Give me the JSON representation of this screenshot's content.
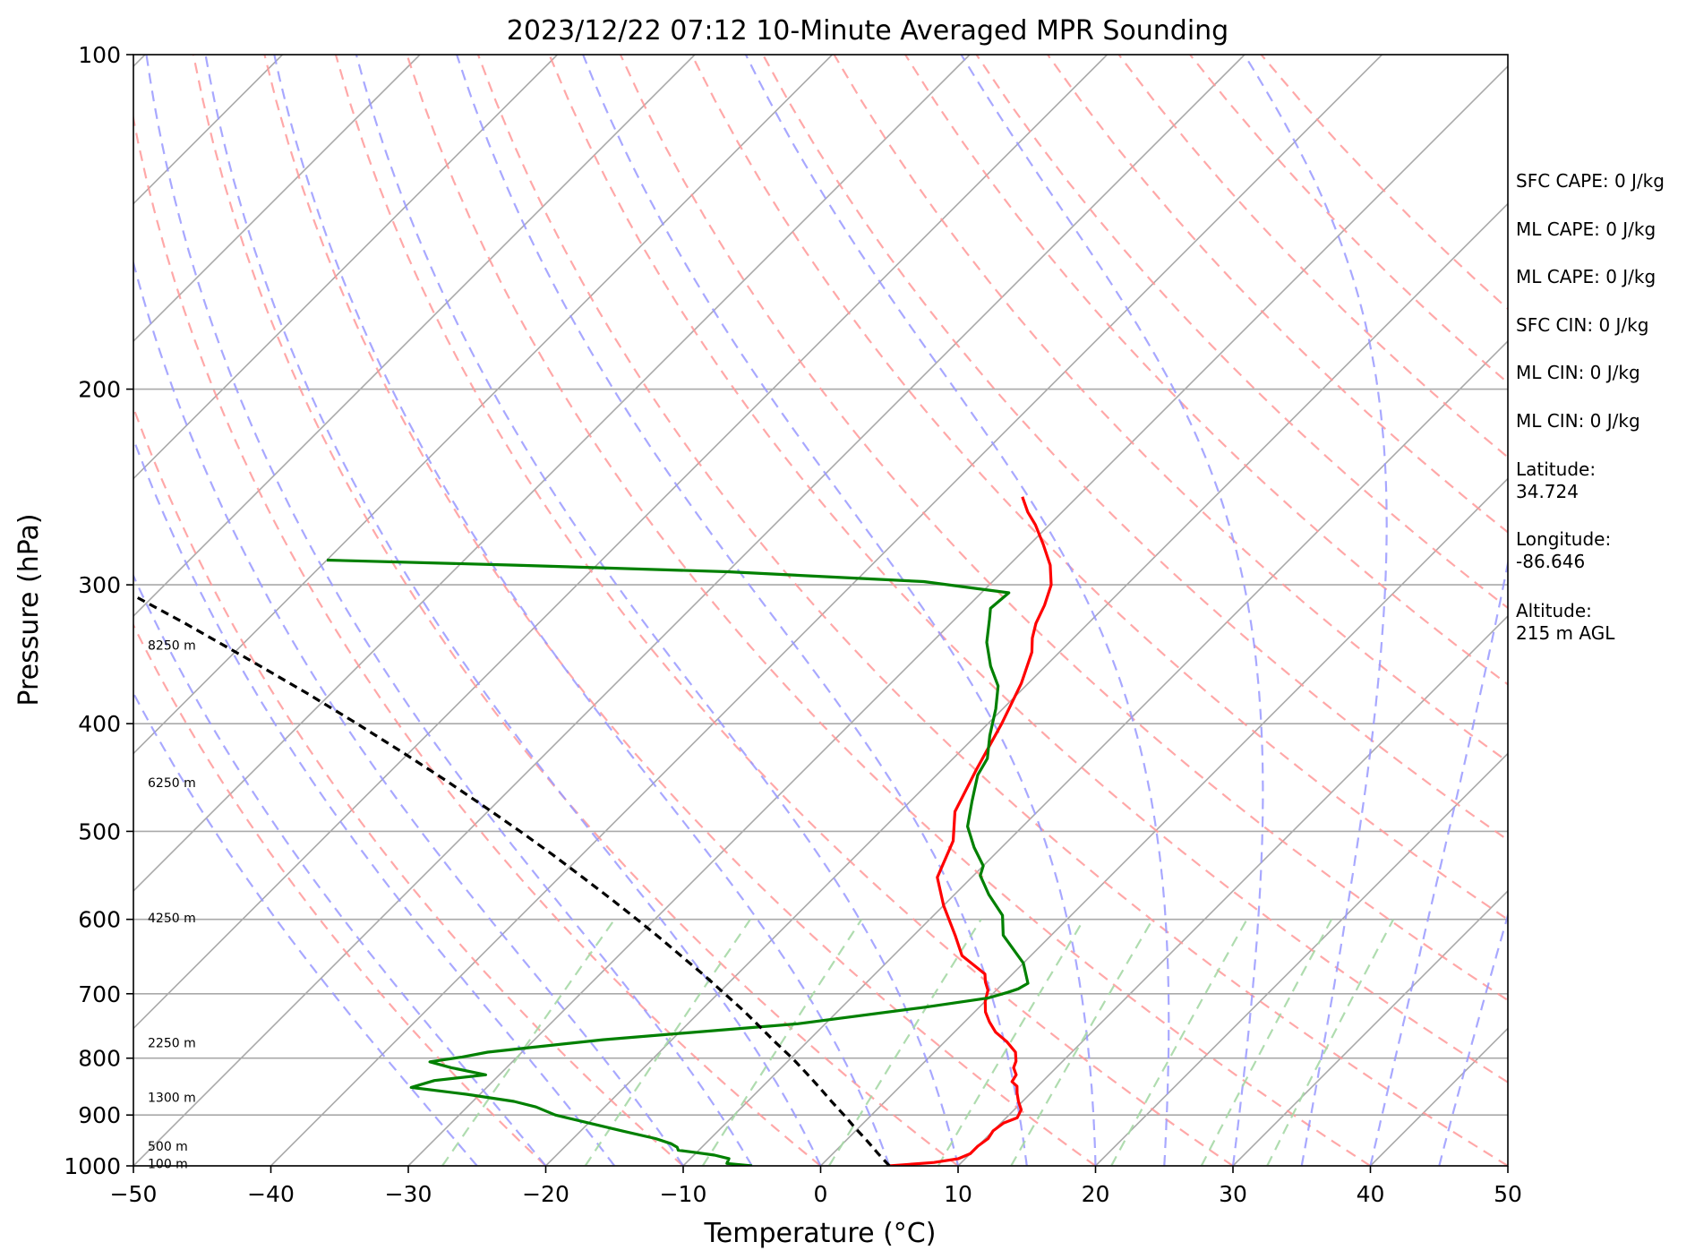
{
  "chart_data": {
    "type": "skew-t",
    "title": "2023/12/22 07:12 10-Minute Averaged MPR Sounding",
    "xlabel": "Temperature (°C)",
    "ylabel": "Pressure (hPa)",
    "xlim": [
      -50,
      50
    ],
    "ylim": [
      1000,
      100
    ],
    "y_scale": "log",
    "grid": true,
    "x_ticks": [
      "−50",
      "−40",
      "−30",
      "−20",
      "−10",
      "0",
      "10",
      "20",
      "30",
      "40",
      "50"
    ],
    "y_ticks": [
      "100",
      "200",
      "300",
      "400",
      "500",
      "600",
      "700",
      "800",
      "900",
      "1000"
    ],
    "height_labels": [
      "8250 m",
      "6250 m",
      "4250 m",
      "2250 m",
      "1300 m",
      "500 m",
      "100 m"
    ],
    "height_label_pressures": [
      340,
      452,
      598,
      775,
      868,
      960,
      995
    ],
    "series": [
      {
        "name": "Temperature",
        "color": "#ff0000",
        "points": [
          [
            5.0,
            1000
          ],
          [
            8.0,
            993
          ],
          [
            9.5,
            985
          ],
          [
            10.0,
            975
          ],
          [
            10.0,
            960
          ],
          [
            10.2,
            945
          ],
          [
            10.0,
            930
          ],
          [
            10.2,
            915
          ],
          [
            10.8,
            905
          ],
          [
            10.5,
            890
          ],
          [
            9.7,
            875
          ],
          [
            9.0,
            860
          ],
          [
            8.5,
            848
          ],
          [
            7.8,
            840
          ],
          [
            7.6,
            828
          ],
          [
            6.9,
            816
          ],
          [
            6.6,
            805
          ],
          [
            5.9,
            790
          ],
          [
            4.5,
            773
          ],
          [
            3.0,
            758
          ],
          [
            1.8,
            742
          ],
          [
            0.8,
            727
          ],
          [
            0.0,
            711
          ],
          [
            -0.6,
            695
          ],
          [
            -1.4,
            683
          ],
          [
            -2.0,
            672
          ],
          [
            -5.0,
            647
          ],
          [
            -7.0,
            620
          ],
          [
            -10.0,
            583
          ],
          [
            -12.5,
            550
          ],
          [
            -14.0,
            510
          ],
          [
            -16.0,
            480
          ],
          [
            -17.5,
            440
          ],
          [
            -19.0,
            400
          ],
          [
            -20.5,
            368
          ],
          [
            -22.0,
            345
          ],
          [
            -23.0,
            335
          ],
          [
            -23.8,
            325
          ],
          [
            -24.5,
            313
          ],
          [
            -25.5,
            300
          ],
          [
            -27.0,
            288
          ],
          [
            -29.0,
            276
          ],
          [
            -31.0,
            265
          ],
          [
            -32.5,
            258
          ],
          [
            -34.0,
            250
          ]
        ]
      },
      {
        "name": "Dewpoint",
        "color": "#008000",
        "points": [
          [
            -5.0,
            1000
          ],
          [
            -7.0,
            995
          ],
          [
            -7.2,
            985
          ],
          [
            -8.5,
            978
          ],
          [
            -10.0,
            973
          ],
          [
            -11.5,
            968
          ],
          [
            -11.8,
            962
          ],
          [
            -12.5,
            955
          ],
          [
            -14.0,
            945
          ],
          [
            -17.0,
            930
          ],
          [
            -20.0,
            915
          ],
          [
            -23.0,
            900
          ],
          [
            -25.0,
            885
          ],
          [
            -27.0,
            875
          ],
          [
            -31.0,
            862
          ],
          [
            -35.5,
            850
          ],
          [
            -34.3,
            838
          ],
          [
            -31.0,
            828
          ],
          [
            -34.0,
            816
          ],
          [
            -36.0,
            806
          ],
          [
            -34.0,
            798
          ],
          [
            -32.5,
            790
          ],
          [
            -25.0,
            770
          ],
          [
            -12.0,
            745
          ],
          [
            -4.0,
            720
          ],
          [
            0.0,
            706
          ],
          [
            1.0,
            698
          ],
          [
            1.5,
            693
          ],
          [
            1.8,
            685
          ],
          [
            0.0,
            657
          ],
          [
            -3.5,
            620
          ],
          [
            -5.0,
            595
          ],
          [
            -7.5,
            570
          ],
          [
            -9.5,
            548
          ],
          [
            -10.0,
            537
          ],
          [
            -12.0,
            517
          ],
          [
            -14.0,
            495
          ],
          [
            -15.5,
            470
          ],
          [
            -17.0,
            445
          ],
          [
            -17.5,
            430
          ],
          [
            -19.0,
            410
          ],
          [
            -20.5,
            388
          ],
          [
            -22.0,
            370
          ],
          [
            -24.0,
            355
          ],
          [
            -26.0,
            338
          ],
          [
            -27.5,
            322
          ],
          [
            -28.2,
            315
          ],
          [
            -28.0,
            305
          ],
          [
            -35.0,
            298
          ],
          [
            -50.0,
            292
          ],
          [
            -66.0,
            288
          ],
          [
            -80.0,
            285
          ]
        ]
      },
      {
        "name": "Parcel",
        "color": "#000000",
        "dashed": true,
        "points": [
          [
            5.0,
            1000
          ],
          [
            3.3,
            975
          ],
          [
            1.6,
            950
          ],
          [
            -0.2,
            925
          ],
          [
            -2.0,
            900
          ],
          [
            -3.9,
            875
          ],
          [
            -5.8,
            850
          ],
          [
            -7.8,
            825
          ],
          [
            -9.9,
            800
          ],
          [
            -12.2,
            775
          ],
          [
            -14.5,
            750
          ],
          [
            -16.9,
            725
          ],
          [
            -19.5,
            700
          ],
          [
            -22.2,
            675
          ],
          [
            -25.1,
            650
          ],
          [
            -28.1,
            625
          ],
          [
            -31.3,
            600
          ],
          [
            -34.7,
            575
          ],
          [
            -38.3,
            550
          ],
          [
            -42.1,
            525
          ],
          [
            -46.2,
            500
          ],
          [
            -50.6,
            475
          ],
          [
            -55.3,
            450
          ],
          [
            -60.4,
            425
          ],
          [
            -65.9,
            400
          ],
          [
            -71.9,
            375
          ],
          [
            -78.5,
            350
          ],
          [
            -85.7,
            325
          ],
          [
            -93.7,
            300
          ],
          [
            -102.5,
            275
          ],
          [
            -112.3,
            250
          ]
        ]
      }
    ],
    "isotherms": [
      -150,
      -140,
      -130,
      -120,
      -110,
      -100,
      -90,
      -80,
      -70,
      -60,
      -50,
      -40,
      -30,
      -20,
      -10,
      0,
      10,
      20,
      30,
      40,
      50
    ],
    "dry_adiabats_thetaC": [
      -20,
      -10,
      0,
      10,
      20,
      30,
      40,
      50,
      60,
      70,
      80,
      90,
      100,
      110,
      120,
      130,
      140,
      150,
      160
    ],
    "moist_adiabats_startC": [
      -25,
      -20,
      -15,
      -10,
      -5,
      0,
      5,
      10,
      15,
      20,
      25,
      30,
      35,
      40,
      45
    ],
    "mixing_ratio_lines_gkg": [
      0.4,
      1,
      2,
      4,
      7,
      10,
      16,
      24,
      32
    ],
    "gridline_color": "#a9a9a9",
    "dry_adiabat_color": "#ff9999",
    "moist_adiabat_color": "#9999ff",
    "mixing_ratio_color": "#a6d8a6"
  },
  "info_panel": {
    "sfc_cape": "SFC CAPE: 0 J/kg",
    "ml_cape": "ML CAPE: 0 J/kg",
    "ml_cape_2": "ML CAPE: 0 J/kg",
    "sfc_cin": "SFC CIN: 0 J/kg",
    "ml_cin": "ML CIN: 0 J/kg",
    "ml_cin_2": "ML CIN: 0 J/kg",
    "latitude": "Latitude:\n34.724",
    "longitude": "Longitude:\n-86.646",
    "altitude": "Altitude:\n215 m AGL"
  }
}
